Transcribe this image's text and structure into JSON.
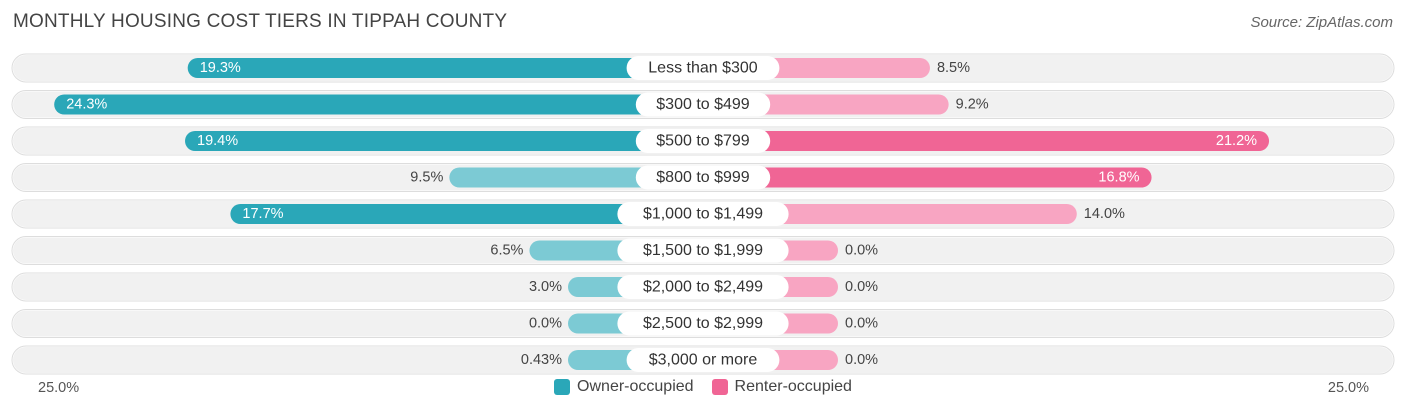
{
  "title": "MONTHLY HOUSING COST TIERS IN TIPPAH COUNTY",
  "source": "Source: ZipAtlas.com",
  "colors": {
    "owner_strong": "#2aa7b8",
    "owner_light": "#7ccad4",
    "renter_strong": "#f06595",
    "renter_light": "#f8a5c2",
    "row_bg": "#eeeeee"
  },
  "axis": {
    "left_label": "25.0%",
    "right_label": "25.0%"
  },
  "legend": [
    {
      "label": "Owner-occupied",
      "color": "#2aa7b8"
    },
    {
      "label": "Renter-occupied",
      "color": "#f06595"
    }
  ],
  "chart_data": {
    "type": "bar",
    "orientation": "horizontal-diverging",
    "title": "MONTHLY HOUSING COST TIERS IN TIPPAH COUNTY",
    "xlim": [
      -25,
      25
    ],
    "categories": [
      "Less than $300",
      "$300 to $499",
      "$500 to $799",
      "$800 to $999",
      "$1,000 to $1,499",
      "$1,500 to $1,999",
      "$2,000 to $2,499",
      "$2,500 to $2,999",
      "$3,000 or more"
    ],
    "series": [
      {
        "name": "Owner-occupied",
        "values": [
          19.3,
          24.3,
          19.4,
          9.5,
          17.7,
          6.5,
          3.0,
          0.0,
          0.43
        ],
        "labels": [
          "19.3%",
          "24.3%",
          "19.4%",
          "9.5%",
          "17.7%",
          "6.5%",
          "3.0%",
          "0.0%",
          "0.43%"
        ]
      },
      {
        "name": "Renter-occupied",
        "values": [
          8.5,
          9.2,
          21.2,
          16.8,
          14.0,
          0.0,
          0.0,
          0.0,
          0.0
        ],
        "labels": [
          "8.5%",
          "9.2%",
          "21.2%",
          "16.8%",
          "14.0%",
          "0.0%",
          "0.0%",
          "0.0%",
          "0.0%"
        ]
      }
    ],
    "legend_position": "bottom-center"
  }
}
